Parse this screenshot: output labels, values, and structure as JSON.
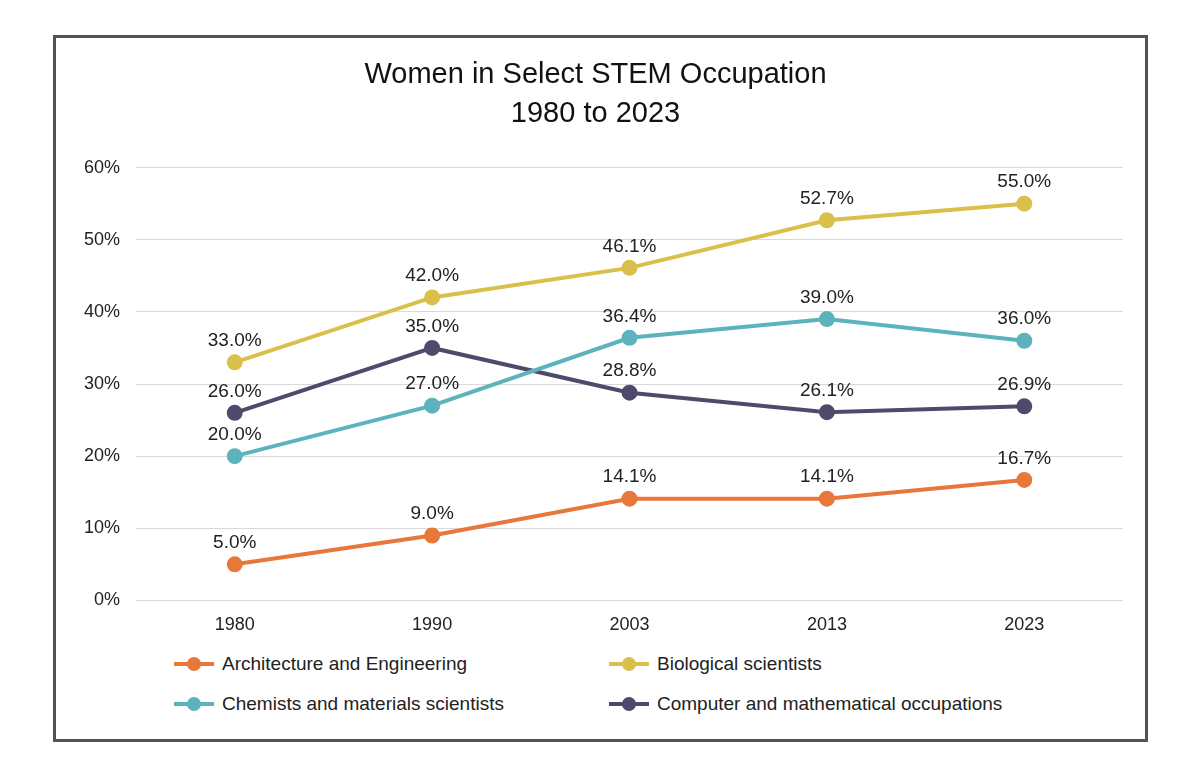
{
  "chart_data": {
    "type": "line",
    "title": "Women in Select STEM Occupation",
    "subtitle": "1980 to 2023",
    "categories": [
      "1980",
      "1990",
      "2003",
      "2013",
      "2023"
    ],
    "series": [
      {
        "name": "Architecture and Engineering",
        "color": "#e8773a",
        "values": [
          5.0,
          9.0,
          14.1,
          14.1,
          16.7
        ],
        "value_labels": [
          "5.0%",
          "9.0%",
          "14.1%",
          "14.1%",
          "16.7%"
        ]
      },
      {
        "name": "Biological scientists",
        "color": "#d9c04b",
        "values": [
          33.0,
          42.0,
          46.1,
          52.7,
          55.0
        ],
        "value_labels": [
          "33.0%",
          "42.0%",
          "46.1%",
          "52.7%",
          "55.0%"
        ]
      },
      {
        "name": "Chemists and materials scientists",
        "color": "#5cb3bd",
        "values": [
          20.0,
          27.0,
          36.4,
          39.0,
          36.0
        ],
        "value_labels": [
          "20.0%",
          "27.0%",
          "36.4%",
          "39.0%",
          "36.0%"
        ]
      },
      {
        "name": "Computer and mathematical occupations",
        "color": "#4f4a6b",
        "values": [
          26.0,
          35.0,
          28.8,
          26.1,
          26.9
        ],
        "value_labels": [
          "26.0%",
          "35.0%",
          "28.8%",
          "26.1%",
          "26.9%"
        ]
      }
    ],
    "ylim": [
      0,
      60
    ],
    "yticks": [
      {
        "value": 0,
        "label": "0%"
      },
      {
        "value": 10,
        "label": "10%"
      },
      {
        "value": 20,
        "label": "20%"
      },
      {
        "value": 30,
        "label": "30%"
      },
      {
        "value": 40,
        "label": "40%"
      },
      {
        "value": 50,
        "label": "50%"
      },
      {
        "value": 60,
        "label": "60%"
      }
    ],
    "grid": true,
    "legend": "bottom",
    "data_labels": true,
    "marker": "circle"
  }
}
